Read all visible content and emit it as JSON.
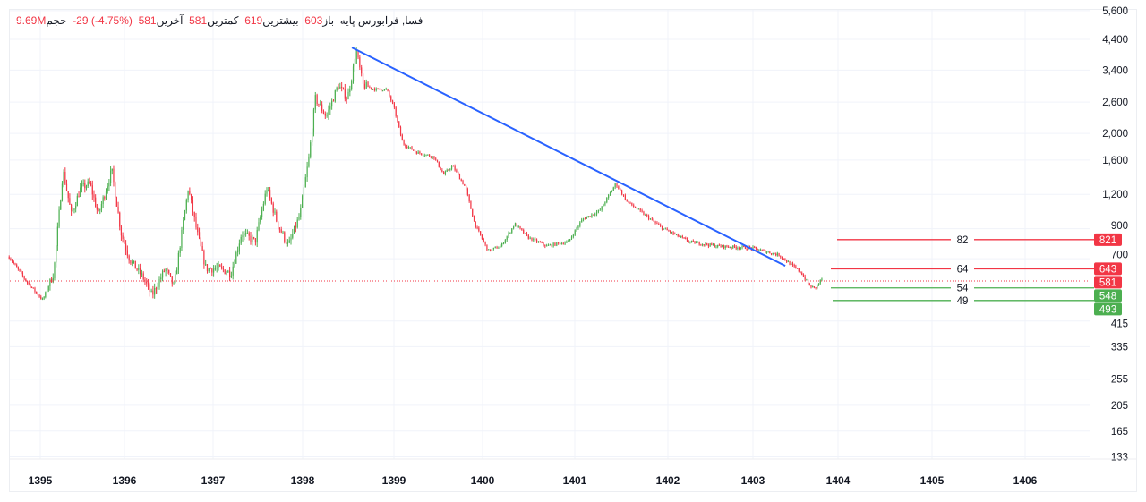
{
  "header": {
    "symbol_label": "فسا, فرابورس پایه",
    "open_label": "باز",
    "open_value": "603",
    "high_label": "بیشترین",
    "high_value": "619",
    "low_label": "کمترین",
    "low_value": "581",
    "last_label": "آخرین",
    "last_value": "581",
    "change_value": "-29 (-4.75%)",
    "volume_label": "حجم",
    "volume_value": "9.69M"
  },
  "colors": {
    "up": "#4caf50",
    "down": "#f23645",
    "trendline": "#2962ff",
    "grid": "#f0f3fa"
  },
  "chart_data": {
    "type": "candlestick",
    "y_scale": "log",
    "ylim": [
      120,
      5600
    ],
    "y_ticks": [
      "5,600",
      "4,400",
      "3,400",
      "2,600",
      "2,000",
      "1,600",
      "1,200",
      "900",
      "700",
      "415",
      "335",
      "255",
      "205",
      "165",
      "133"
    ],
    "y_tick_values": [
      5600,
      4400,
      3400,
      2600,
      2000,
      1600,
      1200,
      900,
      700,
      415,
      335,
      255,
      205,
      165,
      133
    ],
    "x_ticks": [
      "1395",
      "1396",
      "1397",
      "1398",
      "1399",
      "1400",
      "1401",
      "1402",
      "1403",
      "1404",
      "1405",
      "1406"
    ],
    "grid": true,
    "price_path": [
      [
        1394.63,
        710
      ],
      [
        1394.84,
        576
      ],
      [
        1395.03,
        495
      ],
      [
        1395.16,
        621
      ],
      [
        1395.27,
        1469
      ],
      [
        1395.37,
        1011
      ],
      [
        1395.48,
        1265
      ],
      [
        1395.59,
        1314
      ],
      [
        1395.69,
        1011
      ],
      [
        1395.85,
        1469
      ],
      [
        1395.96,
        869
      ],
      [
        1396.06,
        695
      ],
      [
        1396.21,
        598
      ],
      [
        1396.31,
        514
      ],
      [
        1396.46,
        644
      ],
      [
        1396.56,
        555
      ],
      [
        1396.72,
        1265
      ],
      [
        1396.82,
        869
      ],
      [
        1396.92,
        644
      ],
      [
        1397.07,
        644
      ],
      [
        1397.2,
        621
      ],
      [
        1397.32,
        869
      ],
      [
        1397.47,
        807
      ],
      [
        1397.6,
        1265
      ],
      [
        1397.72,
        938
      ],
      [
        1397.84,
        778
      ],
      [
        1397.97,
        1011
      ],
      [
        1398.07,
        1644
      ],
      [
        1398.14,
        2679
      ],
      [
        1398.26,
        2306
      ],
      [
        1398.39,
        2999
      ],
      [
        1398.49,
        2679
      ],
      [
        1398.59,
        3954
      ],
      [
        1398.66,
        2999
      ],
      [
        1398.8,
        2891
      ],
      [
        1398.92,
        2891
      ],
      [
        1399.0,
        2485
      ],
      [
        1399.1,
        1841
      ],
      [
        1399.25,
        1709
      ],
      [
        1399.45,
        1644
      ],
      [
        1399.56,
        1416
      ],
      [
        1399.66,
        1527
      ],
      [
        1399.81,
        1265
      ],
      [
        1399.91,
        938
      ],
      [
        1400.06,
        748
      ],
      [
        1400.2,
        778
      ],
      [
        1400.35,
        938
      ],
      [
        1400.49,
        838
      ],
      [
        1400.69,
        778
      ],
      [
        1400.93,
        807
      ],
      [
        1401.08,
        973
      ],
      [
        1401.27,
        1049
      ],
      [
        1401.44,
        1314
      ],
      [
        1401.56,
        1131
      ],
      [
        1401.75,
        1011
      ],
      [
        1401.94,
        904
      ],
      [
        1402.25,
        807
      ],
      [
        1402.57,
        778
      ],
      [
        1402.99,
        766
      ],
      [
        1403.31,
        721
      ],
      [
        1403.57,
        621
      ],
      [
        1403.67,
        555
      ],
      [
        1403.73,
        546
      ],
      [
        1403.82,
        598
      ]
    ],
    "trendline": [
      [
        1398.54,
        4110
      ],
      [
        1403.38,
        659
      ]
    ],
    "current_price": {
      "value": 581,
      "label": "581"
    },
    "levels": [
      {
        "label": "82",
        "price": 821,
        "price_label": "821",
        "color": "#f23645"
      },
      {
        "label": "64",
        "price": 643,
        "price_label": "643",
        "color": "#f23645"
      },
      {
        "label": "54",
        "price": 548,
        "price_label": "548",
        "color": "#4caf50"
      },
      {
        "label": "49",
        "price": 493,
        "price_label": "493",
        "color": "#4caf50"
      }
    ]
  }
}
